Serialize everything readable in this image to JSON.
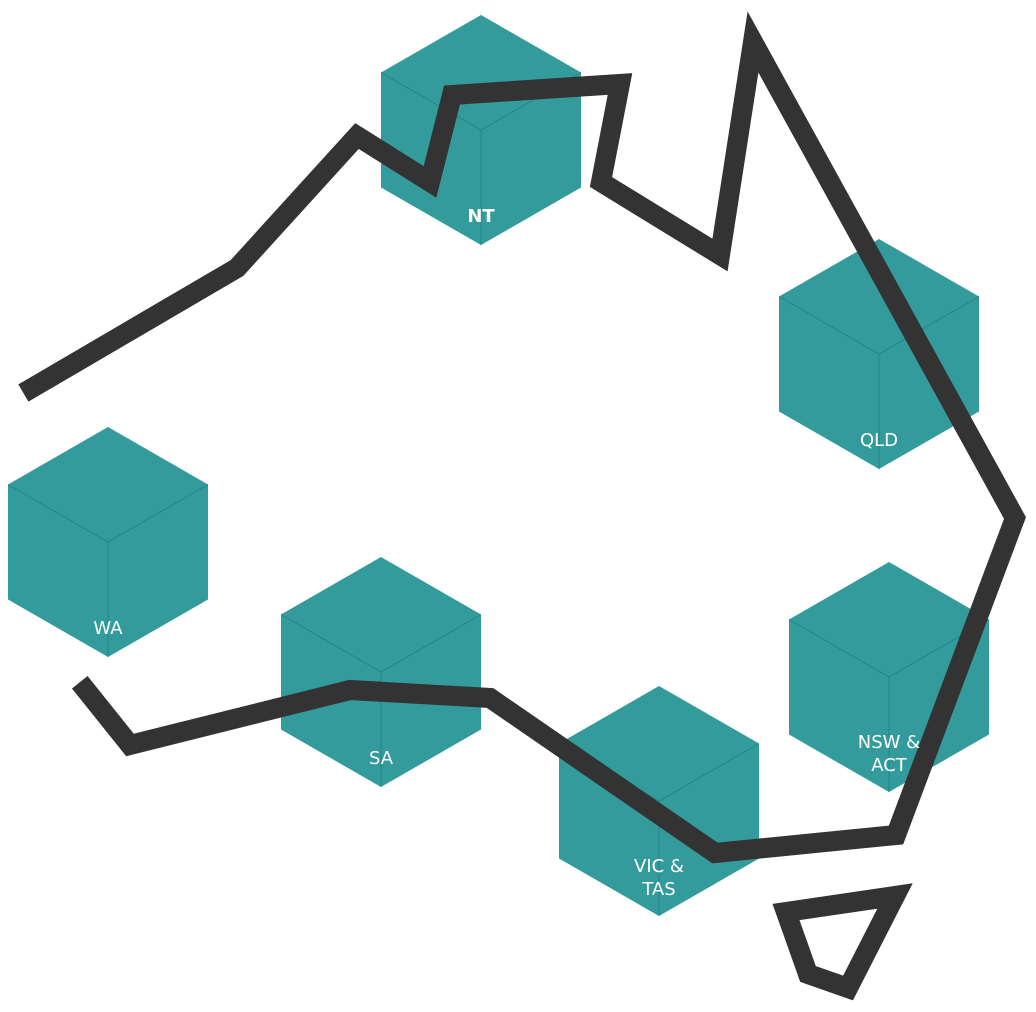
{
  "map": {
    "outline_color": "#333333",
    "hex_color": "#168c8f",
    "regions": [
      {
        "id": "nt",
        "label_lines": [
          "NT"
        ],
        "bold": true
      },
      {
        "id": "qld",
        "label_lines": [
          "QLD"
        ],
        "bold": false
      },
      {
        "id": "wa",
        "label_lines": [
          "WA"
        ],
        "bold": false
      },
      {
        "id": "sa",
        "label_lines": [
          "SA"
        ],
        "bold": false
      },
      {
        "id": "nsw-act",
        "label_lines": [
          "NSW &",
          "ACT"
        ],
        "bold": false
      },
      {
        "id": "vic-tas",
        "label_lines": [
          "VIC &",
          "TAS"
        ],
        "bold": false
      }
    ]
  }
}
